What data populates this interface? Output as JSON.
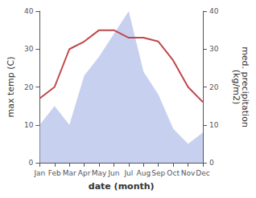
{
  "chart_data": {
    "type": "line",
    "xlabel": "date (month)",
    "ylabel": "max temp (C)",
    "y2label": "med. precipitation\n(kg/m2)",
    "categories": [
      "Jan",
      "Feb",
      "Mar",
      "Apr",
      "May",
      "Jun",
      "Jul",
      "Aug",
      "Sep",
      "Oct",
      "Nov",
      "Dec"
    ],
    "series": [
      {
        "type": "area",
        "color": "#b0bce8",
        "values": [
          10,
          15,
          10,
          23,
          28,
          34,
          40,
          24,
          18,
          9,
          5,
          8
        ]
      },
      {
        "type": "line",
        "color": "#c0474a",
        "axis": "y2",
        "values": [
          17,
          20,
          30,
          32,
          35,
          35,
          33,
          33,
          32,
          27,
          20,
          16
        ]
      }
    ],
    "ylim": [
      0,
      40
    ],
    "yticks": [
      0,
      10,
      20,
      30,
      40
    ],
    "y2lim": [
      0,
      40
    ],
    "y2ticks": [
      0,
      10,
      20,
      30,
      40
    ],
    "grid": false
  }
}
